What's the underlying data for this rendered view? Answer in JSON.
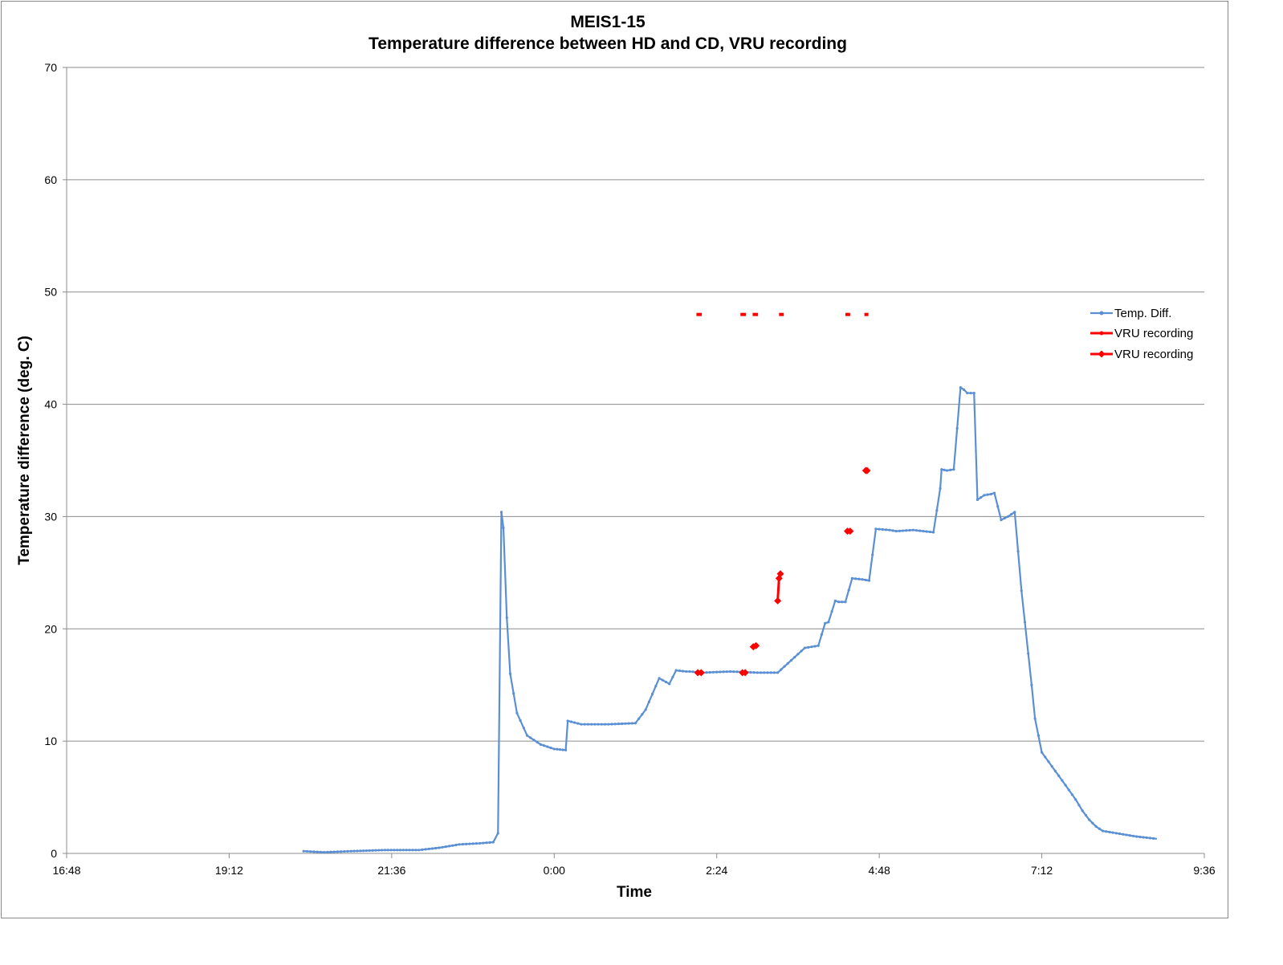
{
  "chart_data": {
    "type": "line",
    "title": "MEIS1-15",
    "subtitle": "Temperature difference between HD and CD, VRU recording",
    "xlabel": "Time",
    "ylabel": "Temperature difference (deg. C)",
    "xlim_hours": [
      16.8,
      33.6
    ],
    "ylim": [
      0,
      70
    ],
    "x_ticks": [
      "16:48",
      "19:12",
      "21:36",
      "0:00",
      "2:24",
      "4:48",
      "7:12",
      "9:36"
    ],
    "y_ticks": [
      "0",
      "10",
      "20",
      "30",
      "40",
      "50",
      "60",
      "70"
    ],
    "grid": "horizontal",
    "legend_position": "right",
    "series": [
      {
        "name": "Temp. Diff.",
        "color": "#5b8fd4",
        "marker": "dot",
        "x": [
          20.3,
          20.6,
          21.0,
          21.5,
          22.0,
          22.3,
          22.6,
          22.9,
          23.1,
          23.17,
          23.22,
          23.25,
          23.3,
          23.35,
          23.45,
          23.6,
          23.8,
          24.0,
          24.17,
          24.2,
          24.4,
          24.8,
          25.2,
          25.35,
          25.55,
          25.7,
          25.8,
          25.95,
          26.0,
          26.2,
          26.6,
          27.0,
          27.3,
          27.7,
          27.9,
          28.0,
          28.05,
          28.15,
          28.2,
          28.3,
          28.4,
          28.55,
          28.65,
          28.75,
          28.95,
          29.05,
          29.3,
          29.6,
          29.7,
          29.72,
          29.8,
          29.9,
          30.0,
          30.05,
          30.1,
          30.2,
          30.25,
          30.35,
          30.45,
          30.5,
          30.6,
          30.7,
          30.8,
          30.9,
          31.05,
          31.1,
          31.2,
          31.5,
          31.7,
          31.8,
          31.9,
          32.0,
          32.1,
          32.3,
          32.6,
          32.9
        ],
        "y": [
          0.2,
          0.1,
          0.2,
          0.3,
          0.3,
          0.5,
          0.8,
          0.9,
          1.0,
          1.8,
          30.4,
          29.0,
          21.0,
          16.0,
          12.5,
          10.5,
          9.7,
          9.3,
          9.2,
          11.8,
          11.5,
          11.5,
          11.6,
          12.8,
          15.6,
          15.1,
          16.3,
          16.2,
          16.2,
          16.1,
          16.2,
          16.1,
          16.1,
          18.3,
          18.5,
          20.5,
          20.6,
          22.5,
          22.4,
          22.4,
          24.5,
          24.4,
          24.3,
          28.9,
          28.8,
          28.7,
          28.8,
          28.6,
          32.5,
          34.2,
          34.1,
          34.2,
          41.5,
          41.3,
          41.0,
          41.0,
          31.5,
          31.9,
          32.0,
          32.1,
          29.7,
          30.0,
          30.4,
          23.4,
          15.0,
          12.0,
          9.0,
          6.5,
          4.8,
          3.8,
          3.0,
          2.4,
          2.0,
          1.8,
          1.5,
          1.3
        ]
      },
      {
        "name": "VRU recording",
        "color": "#ff0000",
        "marker": "dot",
        "y_level": 48,
        "x_segments": [
          [
            26.1,
            26.18
          ],
          [
            26.75,
            26.83
          ],
          [
            26.93,
            27.01
          ],
          [
            27.32,
            27.39
          ],
          [
            28.3,
            28.37
          ],
          [
            28.58,
            28.64
          ]
        ]
      },
      {
        "name": "VRU recording",
        "color": "#ff0000",
        "marker": "diamond",
        "segments": [
          {
            "x": [
              26.12,
              26.17
            ],
            "y": [
              16.1,
              16.1
            ]
          },
          {
            "x": [
              26.78,
              26.82
            ],
            "y": [
              16.1,
              16.1
            ]
          },
          {
            "x": [
              26.94,
              26.98
            ],
            "y": [
              18.4,
              18.5
            ]
          },
          {
            "x": [
              27.3,
              27.32,
              27.34
            ],
            "y": [
              22.5,
              24.5,
              24.9
            ]
          },
          {
            "x": [
              28.33,
              28.37
            ],
            "y": [
              28.7,
              28.7
            ]
          },
          {
            "x": [
              28.6,
              28.62
            ],
            "y": [
              34.1,
              34.1
            ]
          }
        ]
      }
    ]
  }
}
